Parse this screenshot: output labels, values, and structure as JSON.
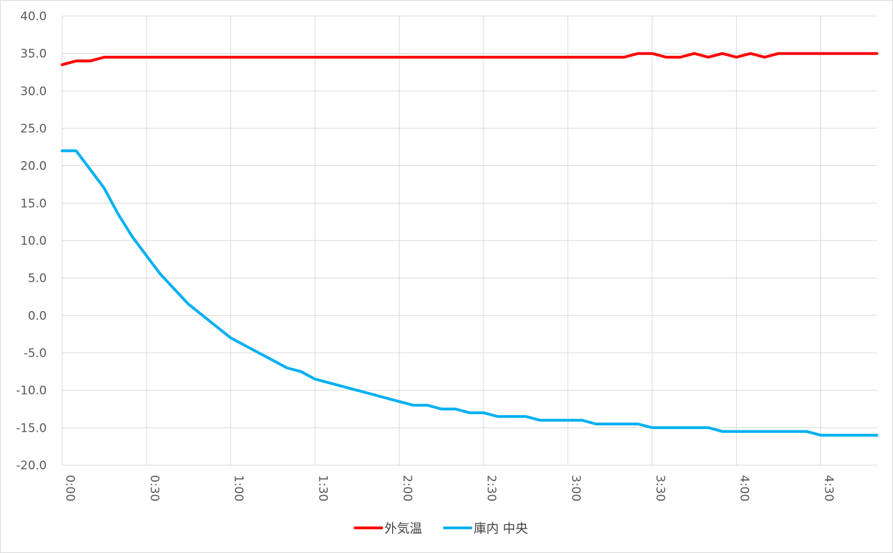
{
  "chart_data": {
    "type": "line",
    "title": "",
    "xlabel": "",
    "ylabel": "",
    "ylim": [
      -20,
      40
    ],
    "y_ticks": [
      "40.0",
      "35.0",
      "30.0",
      "25.0",
      "20.0",
      "15.0",
      "10.0",
      "5.0",
      "0.0",
      "-5.0",
      "-10.0",
      "-15.0",
      "-20.0"
    ],
    "x_range_minutes": [
      0,
      290
    ],
    "x_ticks": [
      "0:00",
      "0:30",
      "1:00",
      "1:30",
      "2:00",
      "2:30",
      "3:00",
      "3:30",
      "4:00",
      "4:30"
    ],
    "grid": true,
    "legend_position": "bottom",
    "series": [
      {
        "name": "外気温",
        "color": "#ff0000",
        "x_minutes": [
          0,
          5,
          10,
          15,
          20,
          25,
          30,
          35,
          40,
          45,
          50,
          55,
          60,
          65,
          70,
          75,
          80,
          85,
          90,
          95,
          100,
          105,
          110,
          115,
          120,
          125,
          130,
          135,
          140,
          145,
          150,
          155,
          160,
          165,
          170,
          175,
          180,
          185,
          190,
          195,
          200,
          205,
          210,
          215,
          220,
          225,
          230,
          235,
          240,
          245,
          250,
          255,
          260,
          265,
          270,
          275,
          280,
          285,
          290
        ],
        "values": [
          33.5,
          34.0,
          34.0,
          34.5,
          34.5,
          34.5,
          34.5,
          34.5,
          34.5,
          34.5,
          34.5,
          34.5,
          34.5,
          34.5,
          34.5,
          34.5,
          34.5,
          34.5,
          34.5,
          34.5,
          34.5,
          34.5,
          34.5,
          34.5,
          34.5,
          34.5,
          34.5,
          34.5,
          34.5,
          34.5,
          34.5,
          34.5,
          34.5,
          34.5,
          34.5,
          34.5,
          34.5,
          34.5,
          34.5,
          34.5,
          34.5,
          35.0,
          35.0,
          34.5,
          34.5,
          35.0,
          34.5,
          35.0,
          34.5,
          35.0,
          34.5,
          35.0,
          35.0,
          35.0,
          35.0,
          35.0,
          35.0,
          35.0,
          35.0
        ]
      },
      {
        "name": "庫内 中央",
        "color": "#00b0f0",
        "x_minutes": [
          0,
          5,
          10,
          15,
          20,
          25,
          30,
          35,
          40,
          45,
          50,
          55,
          60,
          65,
          70,
          75,
          80,
          85,
          90,
          95,
          100,
          105,
          110,
          115,
          120,
          125,
          130,
          135,
          140,
          145,
          150,
          155,
          160,
          165,
          170,
          175,
          180,
          185,
          190,
          195,
          200,
          205,
          210,
          215,
          220,
          225,
          230,
          235,
          240,
          245,
          250,
          255,
          260,
          265,
          270,
          275,
          280,
          285,
          290
        ],
        "values": [
          22.0,
          22.0,
          19.5,
          17.0,
          13.5,
          10.5,
          8.0,
          5.5,
          3.5,
          1.5,
          0.0,
          -1.5,
          -3.0,
          -4.0,
          -5.0,
          -6.0,
          -7.0,
          -7.5,
          -8.5,
          -9.0,
          -9.5,
          -10.0,
          -10.5,
          -11.0,
          -11.5,
          -12.0,
          -12.0,
          -12.5,
          -12.5,
          -13.0,
          -13.0,
          -13.5,
          -13.5,
          -13.5,
          -14.0,
          -14.0,
          -14.0,
          -14.0,
          -14.5,
          -14.5,
          -14.5,
          -14.5,
          -15.0,
          -15.0,
          -15.0,
          -15.0,
          -15.0,
          -15.5,
          -15.5,
          -15.5,
          -15.5,
          -15.5,
          -15.5,
          -15.5,
          -16.0,
          -16.0,
          -16.0,
          -16.0,
          -16.0
        ]
      }
    ]
  }
}
